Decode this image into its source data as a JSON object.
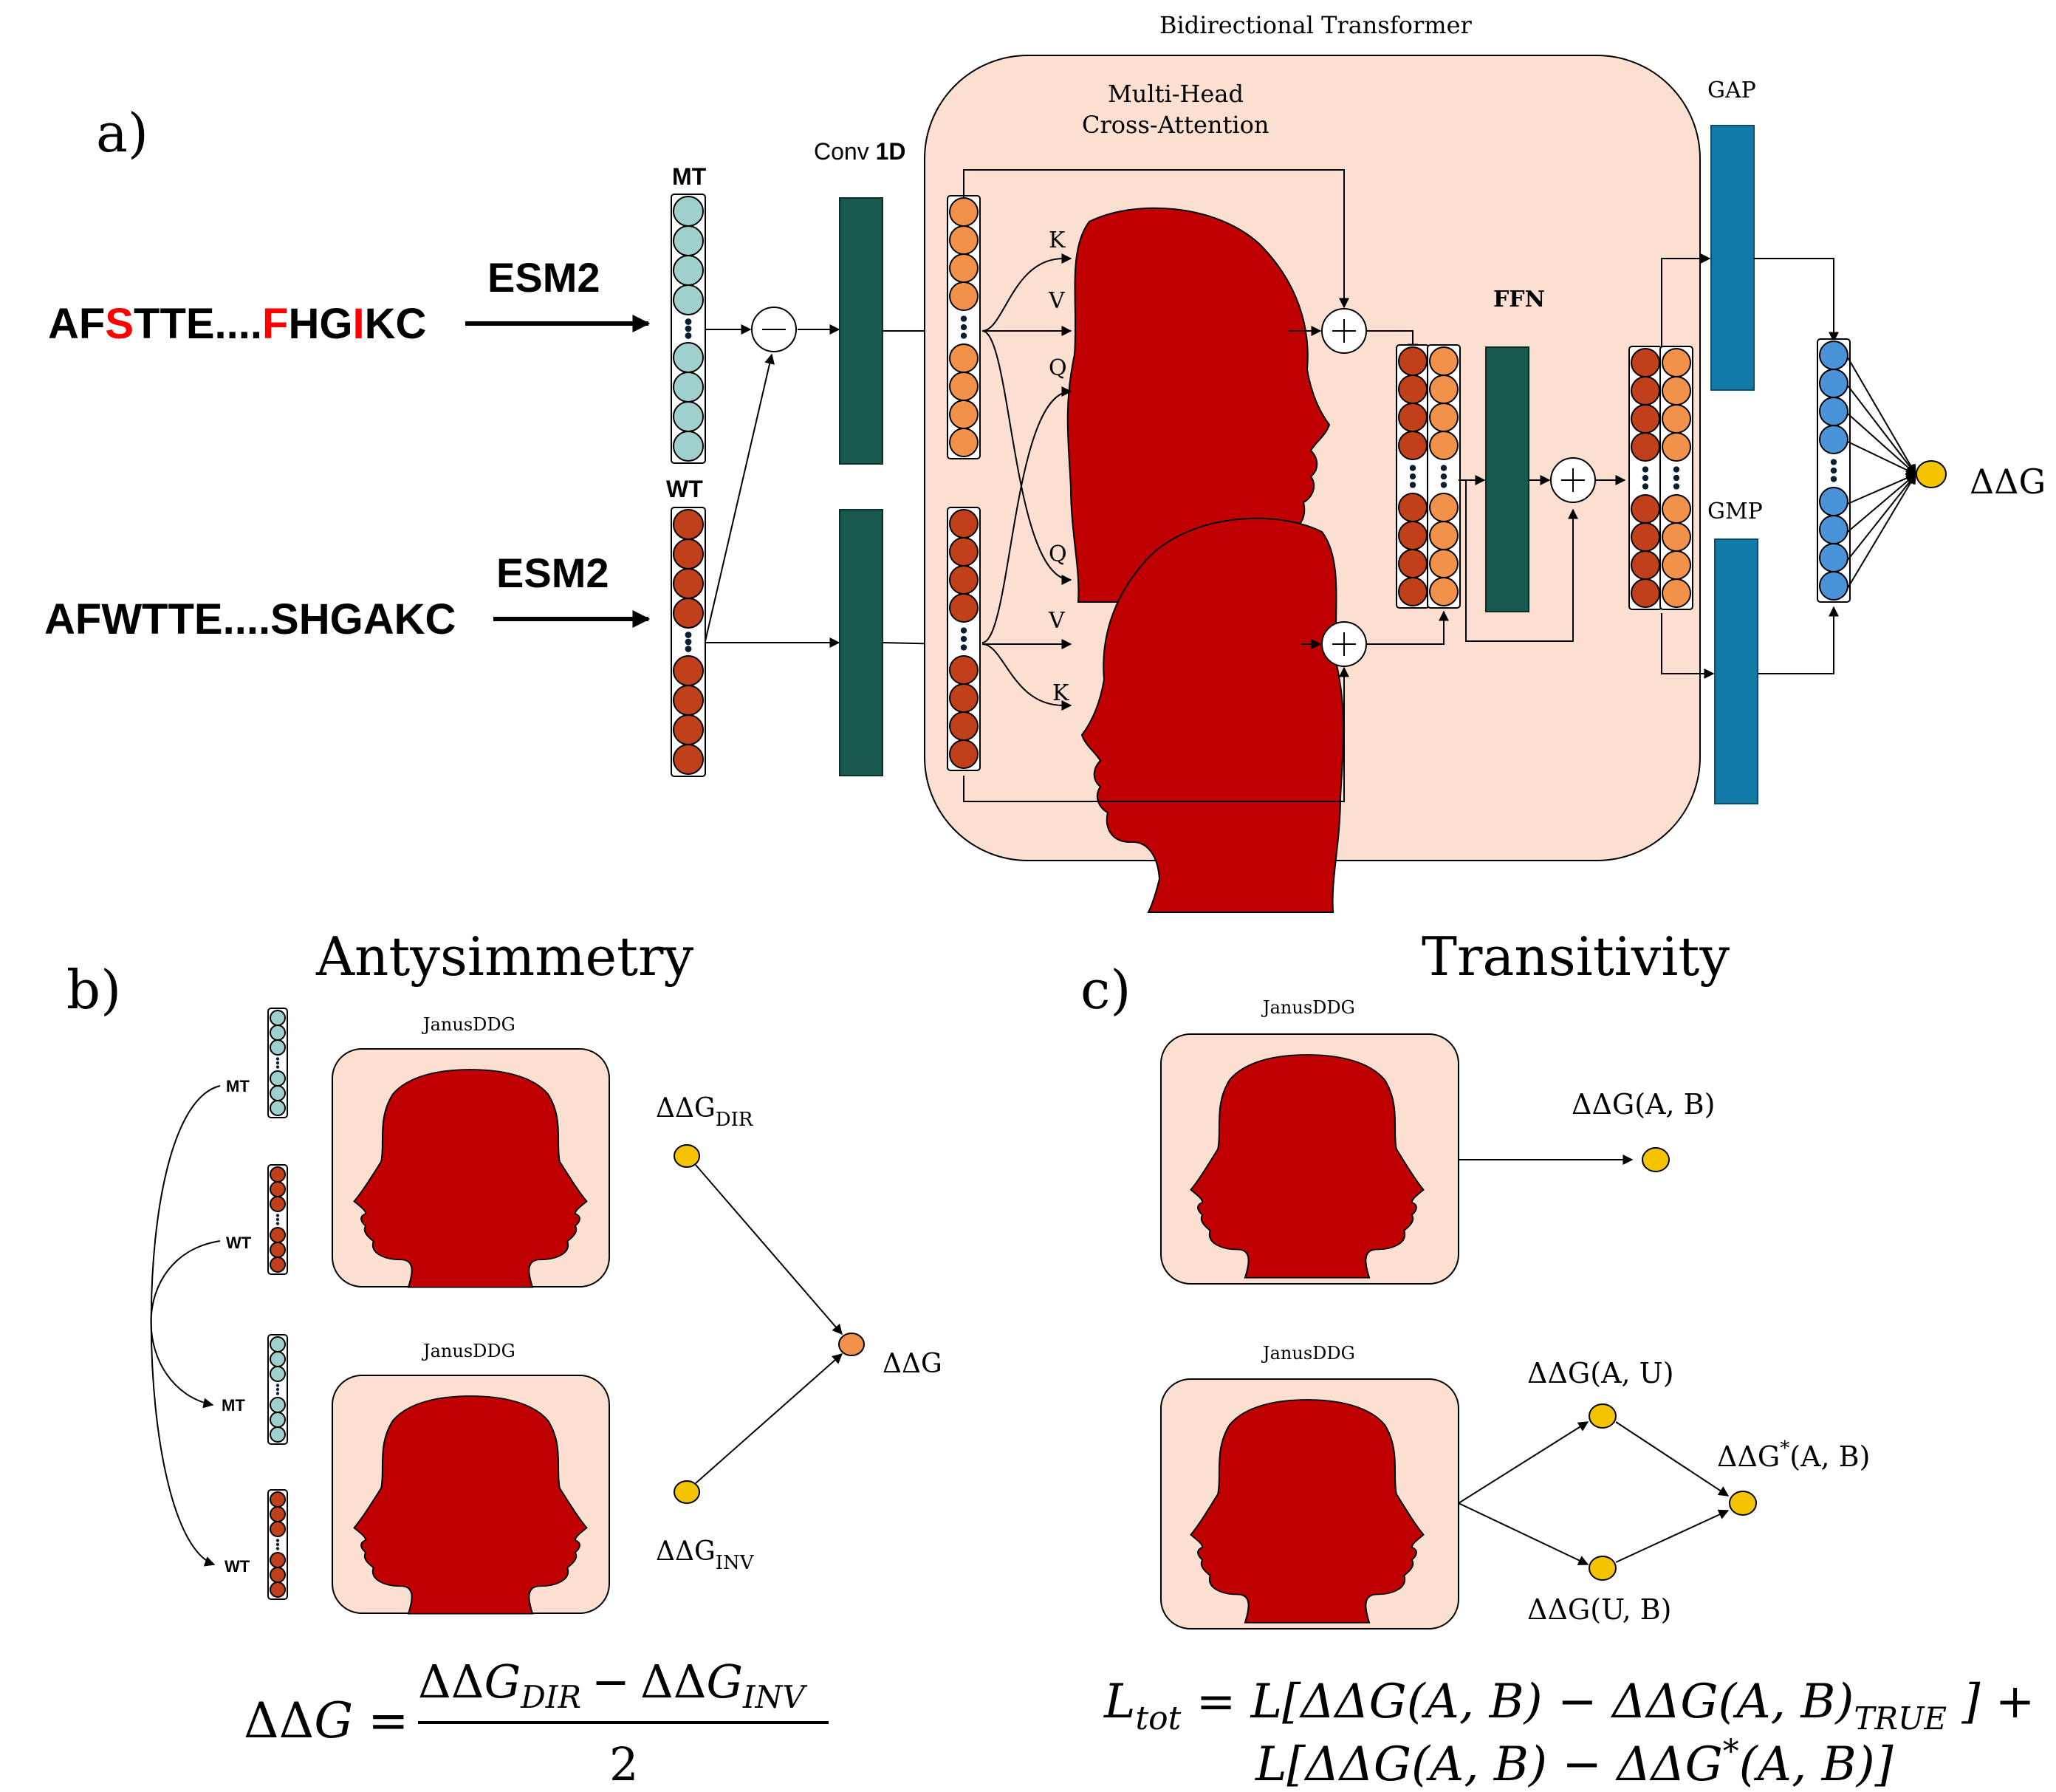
{
  "panel_a": {
    "label": "a)",
    "seq_mt": [
      "AF",
      "S",
      "TTE....",
      "F",
      "HG",
      "I",
      "KC"
    ],
    "seq_wt": "AFWTTE....SHGAKC",
    "esm_top": "ESM2",
    "esm_bottom": "ESM2",
    "mt_label": "MT",
    "wt_label": "WT",
    "conv_label_a": "Conv ",
    "conv_label_b": "1D",
    "transformer_title": "Bidirectional Transformer",
    "mhca_line1": "Multi-Head",
    "mhca_line2": "Cross-Attention",
    "k_top": "K",
    "v_top": "V",
    "q_top": "Q",
    "q_bottom": "Q",
    "v_bottom": "V",
    "k_bottom": "K",
    "ffn_label": "FFN",
    "gap_label": "GAP",
    "gmp_label": "GMP",
    "output_label": "ΔΔG"
  },
  "panel_b": {
    "label": "b)",
    "title": "Antysimmetry",
    "model_top": "JanusDDG",
    "model_bottom": "JanusDDG",
    "mt1": "MT",
    "wt1": "WT",
    "mt2": "MT",
    "wt2": "WT",
    "ddg_dir_base": "ΔΔG",
    "ddg_dir_sub": "DIR",
    "ddg_inv_base": "ΔΔG",
    "ddg_inv_sub": "INV",
    "ddg_out": "ΔΔG",
    "formula_lhs": "ΔΔ",
    "formula_lhs_g": "G",
    "formula_eq": "=",
    "formula_num_a": "ΔΔ",
    "formula_num_a_g": "G",
    "formula_num_a_sub": "DIR",
    "formula_minus": "−",
    "formula_num_b": "ΔΔ",
    "formula_num_b_g": "G",
    "formula_num_b_sub": "INV",
    "formula_den": "2"
  },
  "panel_c": {
    "label": "c)",
    "title": "Transitivity",
    "model_top": "JanusDDG",
    "model_bottom": "JanusDDG",
    "ddg_ab": "ΔΔG(A, B)",
    "ddg_au": "ΔΔG(A, U)",
    "ddg_ub": "ΔΔG(U, B)",
    "ddg_star_a": "ΔΔG",
    "ddg_star_sup": "*",
    "ddg_star_b": "(A, B)",
    "loss_line1": "L",
    "loss_line1_sub": "tot",
    "loss_line1_rest": " = L[ΔΔG(A, B) − ΔΔG(A, B)",
    "loss_line1_sub2": "TRUE",
    "loss_line1_end": " ] +",
    "loss_line2_a": "L[ΔΔG(A, B) − ΔΔG",
    "loss_line2_sup": "*",
    "loss_line2_b": "(A, B)]"
  },
  "colors": {
    "mt_cell": "#9fd0cd",
    "wt_cell": "#c1401c",
    "orange_cell": "#f2924a",
    "blue_cell": "#4a93d9",
    "conv": "#17594c",
    "gap": "#127aa6",
    "transformer_bg": "#fbe0d2",
    "head": "#c00000",
    "node": "#f5c400",
    "node_orange": "#f2924a",
    "red_text": "#ff0000"
  },
  "icons": [
    "head-silhouette-icon",
    "janus-head-icon",
    "plus-circle-icon",
    "minus-circle-icon"
  ]
}
